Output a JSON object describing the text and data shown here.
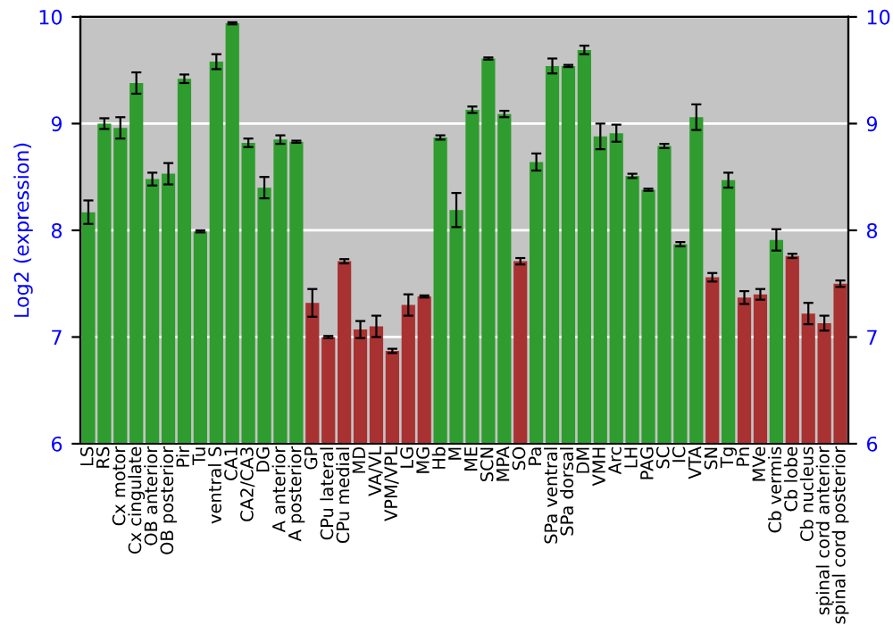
{
  "chart_data": {
    "type": "bar",
    "ylabel": "Log2 (expression)",
    "categories": [
      "LS",
      "RS",
      "Cx motor",
      "Cx cingulate",
      "OB anterior",
      "OB posterior",
      "Pir",
      "Tu",
      "ventral S",
      "CA1",
      "CA2/CA3",
      "DG",
      "A anterior",
      "A posterior",
      "GP",
      "CPu lateral",
      "CPu medial",
      "MD",
      "VA/VL",
      "VPM/VPL",
      "LG",
      "MG",
      "Hb",
      "M",
      "ME",
      "SCN",
      "MPA",
      "SO",
      "Pa",
      "SPa ventral",
      "SPa dorsal",
      "DM",
      "VMH",
      "Arc",
      "LH",
      "PAG",
      "SC",
      "IC",
      "VTA",
      "SN",
      "Tg",
      "Pn",
      "MVe",
      "Cb vermis",
      "Cb lobe",
      "Cb nucleus",
      "spinal cord anterior",
      "spinal cord posterior"
    ],
    "values": [
      8.17,
      9.0,
      8.96,
      9.38,
      8.48,
      8.53,
      9.42,
      7.99,
      9.58,
      9.94,
      8.82,
      8.4,
      8.85,
      8.83,
      7.32,
      7.0,
      7.71,
      7.07,
      7.1,
      6.87,
      7.3,
      7.38,
      8.87,
      8.19,
      9.13,
      9.61,
      9.09,
      7.71,
      8.64,
      9.54,
      9.54,
      9.69,
      8.88,
      8.91,
      8.51,
      8.38,
      8.79,
      7.87,
      9.06,
      7.56,
      8.47,
      7.37,
      7.4,
      7.91,
      7.76,
      7.22,
      7.13,
      7.5
    ],
    "errors": [
      0.11,
      0.05,
      0.1,
      0.1,
      0.06,
      0.1,
      0.04,
      0.01,
      0.07,
      0.01,
      0.04,
      0.1,
      0.04,
      0.01,
      0.13,
      0.01,
      0.02,
      0.08,
      0.1,
      0.02,
      0.1,
      0.01,
      0.02,
      0.16,
      0.03,
      0.01,
      0.03,
      0.03,
      0.08,
      0.07,
      0.01,
      0.04,
      0.12,
      0.08,
      0.02,
      0.01,
      0.02,
      0.02,
      0.12,
      0.04,
      0.07,
      0.06,
      0.05,
      0.1,
      0.02,
      0.1,
      0.07,
      0.03
    ],
    "colors": [
      "#2e9c2e",
      "#2e9c2e",
      "#2e9c2e",
      "#2e9c2e",
      "#2e9c2e",
      "#2e9c2e",
      "#2e9c2e",
      "#2e9c2e",
      "#2e9c2e",
      "#2e9c2e",
      "#2e9c2e",
      "#2e9c2e",
      "#2e9c2e",
      "#2e9c2e",
      "#a83232",
      "#a83232",
      "#a83232",
      "#a83232",
      "#a83232",
      "#a83232",
      "#a83232",
      "#a83232",
      "#2e9c2e",
      "#2e9c2e",
      "#2e9c2e",
      "#2e9c2e",
      "#2e9c2e",
      "#a83232",
      "#2e9c2e",
      "#2e9c2e",
      "#2e9c2e",
      "#2e9c2e",
      "#2e9c2e",
      "#2e9c2e",
      "#2e9c2e",
      "#2e9c2e",
      "#2e9c2e",
      "#2e9c2e",
      "#2e9c2e",
      "#a83232",
      "#2e9c2e",
      "#a83232",
      "#a83232",
      "#2e9c2e",
      "#a83232",
      "#a83232",
      "#a83232",
      "#a83232"
    ],
    "ylim": [
      6,
      10
    ],
    "yticks": [
      6,
      7,
      8,
      9,
      10
    ],
    "y2lim": [
      6,
      10
    ],
    "y2ticks": [
      6,
      7,
      8,
      9,
      10
    ],
    "grid": "y"
  }
}
